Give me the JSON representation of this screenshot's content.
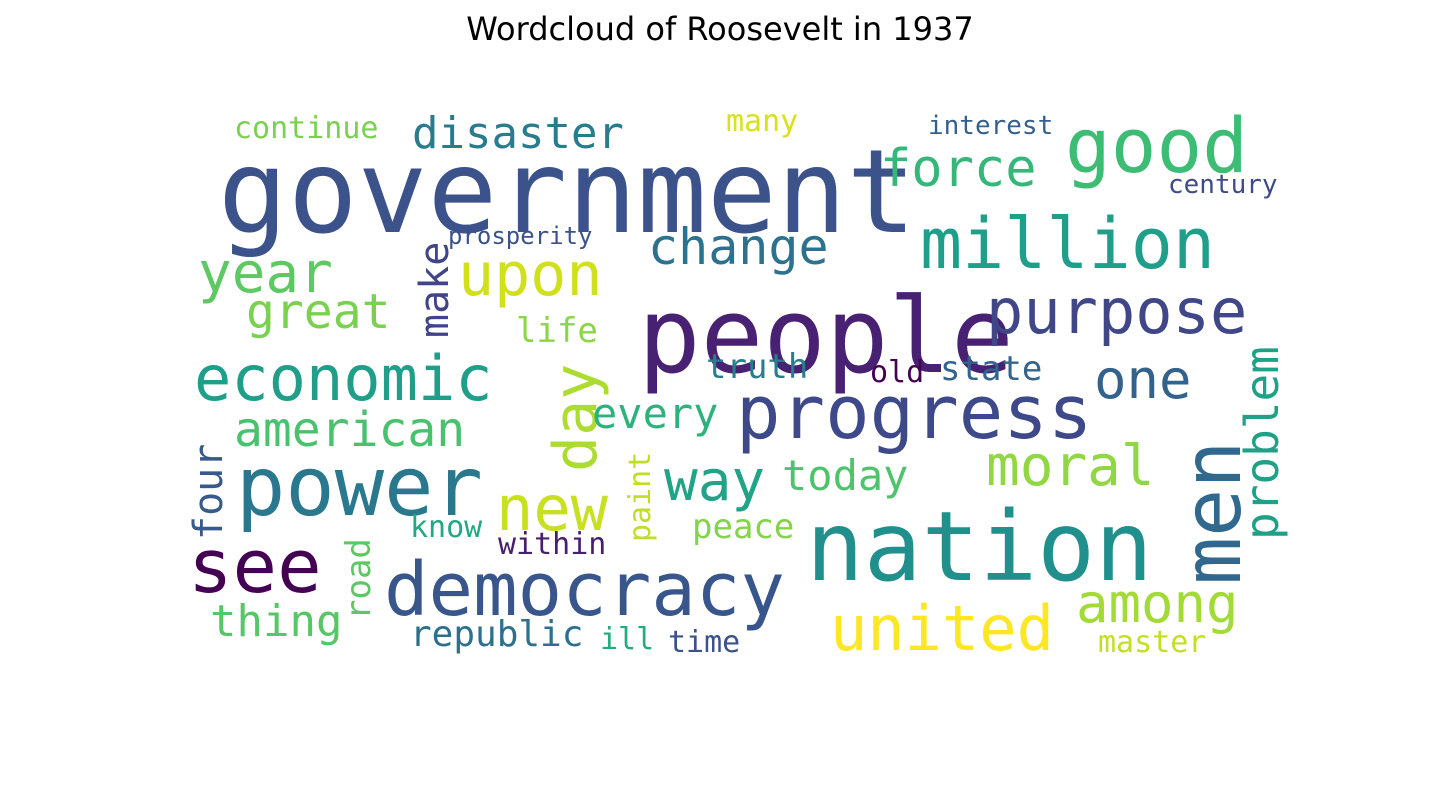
{
  "title": "Wordcloud of Roosevelt in 1937",
  "chart_data": {
    "type": "wordcloud",
    "title": "Wordcloud of Roosevelt in 1937",
    "colormap": "viridis",
    "background": "#ffffff",
    "words": [
      {
        "text": "government",
        "weight": 1.0,
        "color": "#3b528b",
        "orientation": "horizontal"
      },
      {
        "text": "people",
        "weight": 0.85,
        "color": "#482173",
        "orientation": "horizontal"
      },
      {
        "text": "nation",
        "weight": 0.82,
        "color": "#21908d",
        "orientation": "horizontal"
      },
      {
        "text": "democracy",
        "weight": 0.78,
        "color": "#39568c",
        "orientation": "horizontal"
      },
      {
        "text": "power",
        "weight": 0.8,
        "color": "#2a788e",
        "orientation": "horizontal"
      },
      {
        "text": "progress",
        "weight": 0.7,
        "color": "#3e4989",
        "orientation": "horizontal"
      },
      {
        "text": "good",
        "weight": 0.72,
        "color": "#3dbc74",
        "orientation": "horizontal"
      },
      {
        "text": "see",
        "weight": 0.7,
        "color": "#440154",
        "orientation": "horizontal"
      },
      {
        "text": "men",
        "weight": 0.72,
        "color": "#31688e",
        "orientation": "vertical"
      },
      {
        "text": "million",
        "weight": 0.68,
        "color": "#1f9e89",
        "orientation": "horizontal"
      },
      {
        "text": "united",
        "weight": 0.62,
        "color": "#fde725",
        "orientation": "horizontal"
      },
      {
        "text": "economic",
        "weight": 0.64,
        "color": "#1f9e89",
        "orientation": "horizontal"
      },
      {
        "text": "purpose",
        "weight": 0.62,
        "color": "#3f4788",
        "orientation": "horizontal"
      },
      {
        "text": "new",
        "weight": 0.6,
        "color": "#c8e020",
        "orientation": "horizontal"
      },
      {
        "text": "upon",
        "weight": 0.58,
        "color": "#d0e11c",
        "orientation": "horizontal"
      },
      {
        "text": "day",
        "weight": 0.6,
        "color": "#addc30",
        "orientation": "vertical"
      },
      {
        "text": "among",
        "weight": 0.55,
        "color": "#a2da37",
        "orientation": "horizontal"
      },
      {
        "text": "way",
        "weight": 0.55,
        "color": "#20a386",
        "orientation": "horizontal"
      },
      {
        "text": "year",
        "weight": 0.53,
        "color": "#5ec962",
        "orientation": "horizontal"
      },
      {
        "text": "moral",
        "weight": 0.52,
        "color": "#90d743",
        "orientation": "horizontal"
      },
      {
        "text": "one",
        "weight": 0.52,
        "color": "#33638d",
        "orientation": "horizontal"
      },
      {
        "text": "force",
        "weight": 0.5,
        "color": "#35b779",
        "orientation": "horizontal"
      },
      {
        "text": "change",
        "weight": 0.48,
        "color": "#2c728e",
        "orientation": "horizontal"
      },
      {
        "text": "american",
        "weight": 0.47,
        "color": "#4ac16d",
        "orientation": "horizontal"
      },
      {
        "text": "great",
        "weight": 0.48,
        "color": "#7ad151",
        "orientation": "horizontal"
      },
      {
        "text": "disaster",
        "weight": 0.43,
        "color": "#287c8e",
        "orientation": "horizontal"
      },
      {
        "text": "every",
        "weight": 0.42,
        "color": "#2db27d",
        "orientation": "horizontal"
      },
      {
        "text": "today",
        "weight": 0.42,
        "color": "#4ec36b",
        "orientation": "horizontal"
      },
      {
        "text": "thing",
        "weight": 0.42,
        "color": "#56c667",
        "orientation": "horizontal"
      },
      {
        "text": "problem",
        "weight": 0.42,
        "color": "#1fa187",
        "orientation": "vertical"
      },
      {
        "text": "make",
        "weight": 0.4,
        "color": "#414487",
        "orientation": "vertical"
      },
      {
        "text": "four",
        "weight": 0.38,
        "color": "#38598c",
        "orientation": "vertical"
      },
      {
        "text": "republic",
        "weight": 0.36,
        "color": "#2d708e",
        "orientation": "horizontal"
      },
      {
        "text": "state",
        "weight": 0.34,
        "color": "#32648e",
        "orientation": "horizontal"
      },
      {
        "text": "truth",
        "weight": 0.33,
        "color": "#277f8e",
        "orientation": "horizontal"
      },
      {
        "text": "life",
        "weight": 0.33,
        "color": "#8bd646",
        "orientation": "horizontal"
      },
      {
        "text": "road",
        "weight": 0.33,
        "color": "#5cc863",
        "orientation": "vertical"
      },
      {
        "text": "peace",
        "weight": 0.32,
        "color": "#84d44b",
        "orientation": "horizontal"
      },
      {
        "text": "continue",
        "weight": 0.3,
        "color": "#7ad151",
        "orientation": "horizontal"
      },
      {
        "text": "within",
        "weight": 0.29,
        "color": "#481f70",
        "orientation": "horizontal"
      },
      {
        "text": "time",
        "weight": 0.29,
        "color": "#3b528b",
        "orientation": "horizontal"
      },
      {
        "text": "master",
        "weight": 0.28,
        "color": "#c2df23",
        "orientation": "horizontal"
      },
      {
        "text": "know",
        "weight": 0.28,
        "color": "#22a884",
        "orientation": "horizontal"
      },
      {
        "text": "paint",
        "weight": 0.28,
        "color": "#bddf26",
        "orientation": "vertical"
      },
      {
        "text": "old",
        "weight": 0.28,
        "color": "#440154",
        "orientation": "horizontal"
      },
      {
        "text": "ill",
        "weight": 0.28,
        "color": "#25ab82",
        "orientation": "horizontal"
      },
      {
        "text": "many",
        "weight": 0.27,
        "color": "#d8e219",
        "orientation": "horizontal"
      },
      {
        "text": "interest",
        "weight": 0.25,
        "color": "#355f8d",
        "orientation": "horizontal"
      },
      {
        "text": "century",
        "weight": 0.24,
        "color": "#3e4a89",
        "orientation": "horizontal"
      },
      {
        "text": "prosperity",
        "weight": 0.24,
        "color": "#3b528b",
        "orientation": "horizontal"
      }
    ]
  }
}
